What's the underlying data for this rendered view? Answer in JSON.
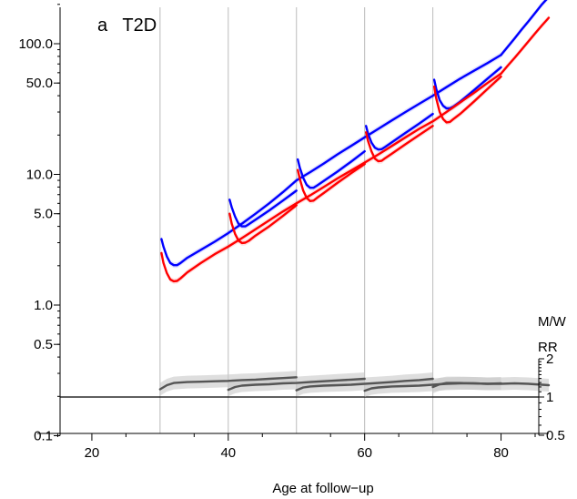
{
  "chart_data": {
    "type": "line",
    "title": "a   T2D",
    "xlabel": "Age at follow−up",
    "x_axis": {
      "range": [
        10,
        87
      ],
      "ticks": [
        20,
        40,
        60,
        80
      ],
      "tick_labels": [
        "20",
        "40",
        "60",
        "80"
      ]
    },
    "y_axis_left": {
      "scale": "log",
      "range": [
        0.1,
        200
      ],
      "ticks": [
        0.1,
        0.5,
        1.0,
        5.0,
        10.0,
        50.0,
        100.0
      ],
      "tick_labels": [
        "0.1",
        "0.5",
        "1.0",
        "5.0",
        "10.0",
        "50.0",
        "100.0"
      ]
    },
    "y_axis_right": {
      "label_line1": "M/W",
      "label_line2": "RR",
      "scale": "log",
      "range": [
        0.5,
        2
      ],
      "ticks": [
        0.5,
        1,
        2
      ],
      "tick_labels": [
        "0.5",
        "1",
        "2"
      ],
      "reference_line": 1
    },
    "vertical_gridlines": [
      30,
      40,
      50,
      60,
      70
    ],
    "colors": {
      "men": "#0000ff",
      "women": "#ff0000",
      "ratio": "#555555",
      "band": "#c8c8c8",
      "grid": "#bbbbbb"
    },
    "series": [
      {
        "color_key": "men",
        "segments": [
          {
            "x": [
              30.2,
              30.5,
              31,
              31.5,
              32,
              32.5,
              33,
              34,
              36,
              38,
              40,
              42,
              44,
              46,
              48,
              50
            ],
            "y": [
              3.2,
              2.8,
              2.35,
              2.1,
              2.02,
              2.02,
              2.1,
              2.3,
              2.65,
              3.05,
              3.55,
              4.2,
              5.0,
              6.0,
              7.3,
              9.0
            ]
          },
          {
            "x": [
              40.2,
              40.5,
              41,
              41.5,
              42,
              42.5,
              43,
              44,
              46,
              48,
              50
            ],
            "y": [
              6.4,
              5.6,
              4.75,
              4.2,
              4.0,
              4.0,
              4.15,
              4.5,
              5.3,
              6.3,
              7.5
            ]
          },
          {
            "x": [
              50.2,
              50.5,
              51,
              51.5,
              52,
              52.5,
              53,
              54,
              56,
              58,
              60
            ],
            "y": [
              13.0,
              11.2,
              9.4,
              8.3,
              7.9,
              7.9,
              8.2,
              8.9,
              10.5,
              12.5,
              15.0
            ]
          },
          {
            "x": [
              60.2,
              60.5,
              61,
              61.5,
              62,
              62.5,
              63,
              64,
              66,
              68,
              70
            ],
            "y": [
              23.5,
              20.5,
              17.5,
              16.0,
              15.5,
              15.6,
              16.2,
              17.6,
              20.8,
              24.5,
              29.0
            ]
          },
          {
            "x": [
              70.2,
              70.5,
              71,
              71.5,
              72,
              72.5,
              73,
              74,
              76,
              78,
              80
            ],
            "y": [
              53.0,
              45.0,
              37.0,
              33.5,
              32.0,
              32.0,
              33.0,
              36.0,
              44.0,
              54.0,
              66.0
            ]
          },
          {
            "x": [
              50,
              52,
              54,
              56,
              58,
              60,
              62,
              64,
              66,
              68,
              70,
              72,
              74,
              76,
              78,
              80
            ],
            "y": [
              9.0,
              10.4,
              12.1,
              14.2,
              16.5,
              19.2,
              22.3,
              25.9,
              30.0,
              34.7,
              40.0,
              46.5,
              54.0,
              62.0,
              71.0,
              82.0
            ]
          },
          {
            "x": [
              80,
              81,
              82,
              83,
              84,
              85,
              86,
              87
            ],
            "y": [
              82.0,
              95.0,
              110.0,
              128.0,
              148.0,
              172.0,
              200.0,
              228.0
            ]
          }
        ]
      },
      {
        "color_key": "women",
        "segments": [
          {
            "x": [
              30.2,
              30.5,
              31,
              31.5,
              32,
              32.5,
              33,
              34,
              36,
              38,
              40,
              42,
              44,
              46,
              48,
              50
            ],
            "y": [
              2.5,
              2.1,
              1.75,
              1.57,
              1.52,
              1.53,
              1.6,
              1.78,
              2.1,
              2.45,
              2.8,
              3.25,
              3.8,
              4.45,
              5.2,
              6.0
            ]
          },
          {
            "x": [
              40.2,
              40.5,
              41,
              41.5,
              42,
              42.5,
              43,
              44,
              46,
              48,
              50
            ],
            "y": [
              5.0,
              4.2,
              3.5,
              3.12,
              2.98,
              3.0,
              3.1,
              3.4,
              4.0,
              4.8,
              5.8
            ]
          },
          {
            "x": [
              50.2,
              50.5,
              51,
              51.5,
              52,
              52.5,
              53,
              54,
              56,
              58,
              60
            ],
            "y": [
              10.8,
              9.2,
              7.5,
              6.6,
              6.25,
              6.3,
              6.6,
              7.2,
              8.6,
              10.2,
              12.0
            ]
          },
          {
            "x": [
              60.2,
              60.5,
              61,
              61.5,
              62,
              62.5,
              63,
              64,
              66,
              68,
              70
            ],
            "y": [
              21.0,
              18.0,
              15.0,
              13.2,
              12.6,
              12.7,
              13.3,
              14.4,
              17.0,
              20.0,
              23.5
            ]
          },
          {
            "x": [
              70.2,
              70.5,
              71,
              71.5,
              72,
              72.5,
              73,
              74,
              76,
              78,
              80
            ],
            "y": [
              47.0,
              38.0,
              30.0,
              26.5,
              25.0,
              25.2,
              26.5,
              29.0,
              36.0,
              45.0,
              56.0
            ]
          },
          {
            "x": [
              50,
              52,
              54,
              56,
              58,
              60,
              62,
              64,
              66,
              68,
              70,
              72,
              74,
              76,
              78,
              80
            ],
            "y": [
              6.0,
              6.9,
              8.0,
              9.3,
              10.7,
              12.3,
              14.2,
              16.5,
              19.2,
              22.3,
              25.5,
              30.0,
              35.5,
              42.0,
              50.0,
              59.0
            ]
          },
          {
            "x": [
              80,
              81,
              82,
              83,
              84,
              85,
              86,
              87
            ],
            "y": [
              59.0,
              68.0,
              78.0,
              90.0,
              104.0,
              120.0,
              138.0,
              158.0
            ]
          }
        ]
      },
      {
        "color_key": "ratio",
        "segments": [
          {
            "x": [
              30,
              31,
              32,
              34,
              36,
              38,
              40,
              42,
              44,
              46,
              48,
              50
            ],
            "y": [
              1.15,
              1.24,
              1.29,
              1.31,
              1.32,
              1.33,
              1.34,
              1.36,
              1.37,
              1.39,
              1.41,
              1.43
            ]
          },
          {
            "x": [
              40,
              41,
              42,
              44,
              46,
              48,
              50,
              52,
              54,
              56,
              58,
              60
            ],
            "y": [
              1.14,
              1.2,
              1.23,
              1.25,
              1.26,
              1.28,
              1.29,
              1.31,
              1.33,
              1.35,
              1.37,
              1.39
            ]
          },
          {
            "x": [
              50,
              51,
              52,
              54,
              56,
              58,
              60,
              62,
              64,
              66,
              68,
              70
            ],
            "y": [
              1.13,
              1.19,
              1.21,
              1.23,
              1.24,
              1.25,
              1.27,
              1.29,
              1.31,
              1.34,
              1.36,
              1.39
            ]
          },
          {
            "x": [
              60,
              61,
              62,
              64,
              66,
              68,
              70,
              72,
              74,
              76,
              78,
              80
            ],
            "y": [
              1.12,
              1.17,
              1.19,
              1.21,
              1.22,
              1.23,
              1.25,
              1.27,
              1.28,
              1.28,
              1.27,
              1.28
            ]
          },
          {
            "x": [
              70,
              71,
              72,
              74,
              76,
              78,
              80,
              82,
              84,
              86,
              87
            ],
            "y": [
              1.2,
              1.26,
              1.29,
              1.29,
              1.28,
              1.27,
              1.27,
              1.28,
              1.27,
              1.25,
              1.24
            ]
          }
        ]
      }
    ]
  }
}
